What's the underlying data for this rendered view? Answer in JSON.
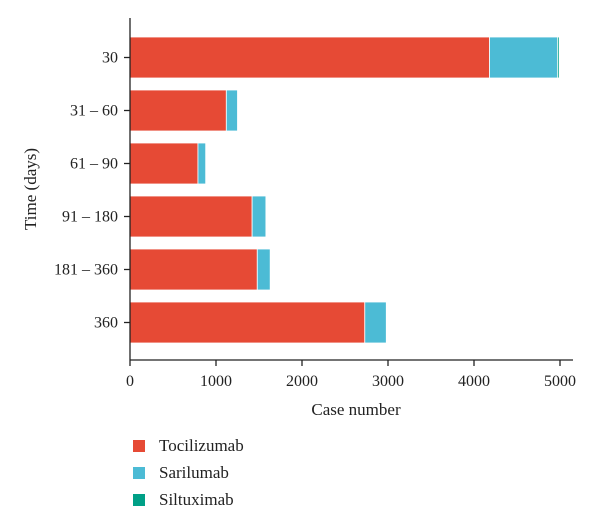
{
  "chart_data": {
    "type": "bar",
    "orientation": "horizontal",
    "stacked": true,
    "title": "",
    "xlabel": "Case number",
    "ylabel": "Time (days)",
    "categories": [
      "30",
      "31 – 60",
      "61 – 90",
      "91 – 180",
      "181 – 360",
      "360"
    ],
    "series": [
      {
        "name": "Tocilizumab",
        "color": "#e64a35",
        "values": [
          4180,
          1120,
          790,
          1420,
          1480,
          2730
        ]
      },
      {
        "name": "Sarilumab",
        "color": "#4cbbd5",
        "values": [
          790,
          130,
          90,
          160,
          150,
          250
        ]
      },
      {
        "name": "Siltuximab",
        "color": "#00a087",
        "values": [
          20,
          0,
          0,
          0,
          0,
          0
        ]
      }
    ],
    "xlim": [
      0,
      5000
    ],
    "xticks": [
      0,
      1000,
      2000,
      3000,
      4000,
      5000
    ],
    "grid": false,
    "legend_position": "bottom-left"
  }
}
